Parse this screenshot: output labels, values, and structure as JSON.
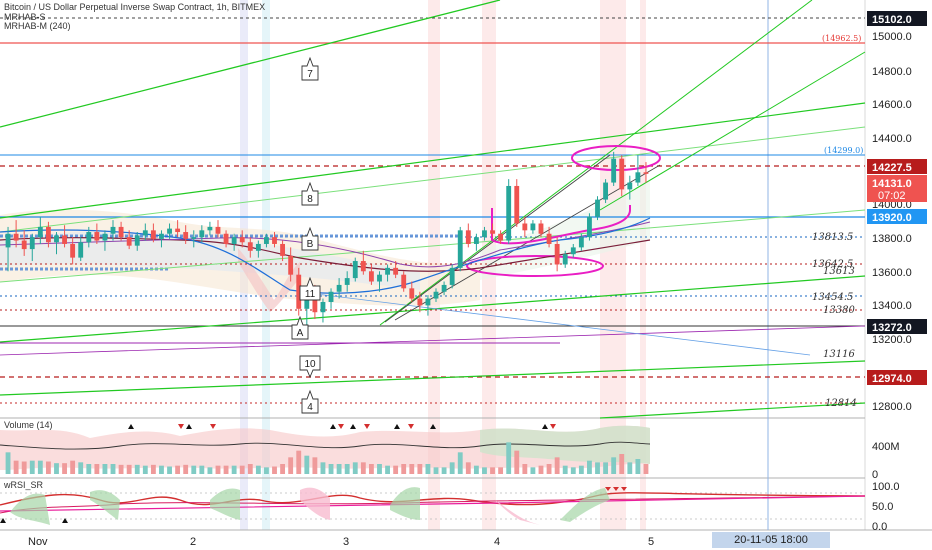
{
  "header": {
    "title": "Bitcoin / US Dollar Perpetual Inverse Swap Contract, 1h, BITMEX",
    "indicator_1": "MRHAB-S",
    "indicator_2": "MRHAB-M (240)"
  },
  "price_axis": {
    "ticks": [
      "15000.0",
      "14800.0",
      "14600.0",
      "14400.0",
      "14000.0",
      "13800.0",
      "13600.0",
      "13400.0",
      "13200.0",
      "12800.0"
    ],
    "tags": [
      {
        "label": "15102.0",
        "color": "#131722"
      },
      {
        "label": "14227.5",
        "color": "#b71c1c"
      },
      {
        "label": "14131.0",
        "color": "#ef5350"
      },
      {
        "label": "07:02",
        "color": "#ef5350"
      },
      {
        "label": "13920.0",
        "color": "#2196f3"
      },
      {
        "label": "13272.0",
        "color": "#131722"
      },
      {
        "label": "12974.0",
        "color": "#b71c1c"
      }
    ]
  },
  "annotations": {
    "level_14962": "(14962.5)",
    "level_14299": "(14299.0)",
    "level_13813": "13813.5",
    "level_13642": "13642.5",
    "level_13613": "13613",
    "level_13454": "13454.5",
    "level_13380": "13380",
    "level_13116": "13116",
    "level_12814": "12814"
  },
  "bubbles": [
    "7",
    "8",
    "B",
    "11",
    "A",
    "10",
    "4"
  ],
  "volume_pane": {
    "label": "Volume (14)",
    "ticks": [
      "400M",
      "0"
    ]
  },
  "rsi_pane": {
    "label": "wRSI_SR",
    "ticks": [
      "100.0",
      "50.0",
      "0.0"
    ]
  },
  "time_axis": {
    "labels": [
      "Nov",
      "2",
      "3",
      "4",
      "5"
    ],
    "cursor_label": "20-11-05   18:00"
  },
  "chart_data": {
    "type": "candlestick",
    "symbol": "Bitcoin / US Dollar Perpetual Inverse Swap Contract",
    "interval": "1h",
    "exchange": "BITMEX",
    "ylim": [
      12700,
      15150
    ],
    "last_price": 14131.0,
    "candles": [
      [
        13700,
        13820,
        13560,
        13780
      ],
      [
        13780,
        13860,
        13700,
        13740
      ],
      [
        13740,
        13800,
        13650,
        13690
      ],
      [
        13690,
        13780,
        13620,
        13760
      ],
      [
        13760,
        13880,
        13720,
        13820
      ],
      [
        13820,
        13850,
        13700,
        13730
      ],
      [
        13730,
        13790,
        13660,
        13770
      ],
      [
        13770,
        13830,
        13700,
        13720
      ],
      [
        13720,
        13760,
        13600,
        13640
      ],
      [
        13640,
        13760,
        13620,
        13730
      ],
      [
        13730,
        13820,
        13700,
        13790
      ],
      [
        13790,
        13840,
        13720,
        13740
      ],
      [
        13740,
        13800,
        13680,
        13780
      ],
      [
        13780,
        13860,
        13740,
        13820
      ],
      [
        13820,
        13850,
        13740,
        13760
      ],
      [
        13760,
        13800,
        13690,
        13710
      ],
      [
        13710,
        13790,
        13680,
        13770
      ],
      [
        13770,
        13840,
        13740,
        13800
      ],
      [
        13800,
        13840,
        13730,
        13750
      ],
      [
        13750,
        13800,
        13700,
        13780
      ],
      [
        13780,
        13840,
        13750,
        13810
      ],
      [
        13810,
        13860,
        13760,
        13790
      ],
      [
        13790,
        13830,
        13720,
        13750
      ],
      [
        13750,
        13800,
        13700,
        13760
      ],
      [
        13760,
        13830,
        13730,
        13800
      ],
      [
        13800,
        13850,
        13770,
        13820
      ],
      [
        13820,
        13860,
        13760,
        13780
      ],
      [
        13780,
        13800,
        13700,
        13720
      ],
      [
        13720,
        13780,
        13680,
        13760
      ],
      [
        13760,
        13800,
        13700,
        13730
      ],
      [
        13730,
        13760,
        13640,
        13680
      ],
      [
        13680,
        13740,
        13640,
        13720
      ],
      [
        13720,
        13780,
        13700,
        13760
      ],
      [
        13760,
        13790,
        13700,
        13720
      ],
      [
        13720,
        13740,
        13620,
        13650
      ],
      [
        13650,
        13700,
        13500,
        13540
      ],
      [
        13540,
        13580,
        13300,
        13340
      ],
      [
        13340,
        13460,
        13240,
        13420
      ],
      [
        13420,
        13480,
        13280,
        13320
      ],
      [
        13320,
        13400,
        13260,
        13380
      ],
      [
        13380,
        13460,
        13340,
        13440
      ],
      [
        13440,
        13520,
        13400,
        13480
      ],
      [
        13480,
        13560,
        13440,
        13520
      ],
      [
        13520,
        13640,
        13500,
        13620
      ],
      [
        13620,
        13680,
        13540,
        13560
      ],
      [
        13560,
        13600,
        13480,
        13500
      ],
      [
        13500,
        13560,
        13440,
        13540
      ],
      [
        13540,
        13600,
        13500,
        13580
      ],
      [
        13580,
        13620,
        13520,
        13540
      ],
      [
        13540,
        13560,
        13440,
        13460
      ],
      [
        13460,
        13500,
        13380,
        13400
      ],
      [
        13400,
        13440,
        13320,
        13360
      ],
      [
        13360,
        13420,
        13300,
        13400
      ],
      [
        13400,
        13460,
        13380,
        13440
      ],
      [
        13440,
        13500,
        13420,
        13480
      ],
      [
        13480,
        13600,
        13460,
        13580
      ],
      [
        13580,
        13820,
        13560,
        13800
      ],
      [
        13800,
        13840,
        13700,
        13720
      ],
      [
        13720,
        13780,
        13680,
        13760
      ],
      [
        13760,
        13820,
        13740,
        13800
      ],
      [
        13800,
        13840,
        13760,
        13780
      ],
      [
        13780,
        13800,
        13720,
        13740
      ],
      [
        13740,
        14100,
        13720,
        14060
      ],
      [
        14060,
        14100,
        13820,
        13840
      ],
      [
        13840,
        13880,
        13760,
        13800
      ],
      [
        13800,
        13860,
        13780,
        13840
      ],
      [
        13840,
        13860,
        13760,
        13780
      ],
      [
        13780,
        13820,
        13700,
        13720
      ],
      [
        13720,
        13760,
        13560,
        13600
      ],
      [
        13600,
        13680,
        13580,
        13660
      ],
      [
        13660,
        13720,
        13640,
        13700
      ],
      [
        13700,
        13780,
        13680,
        13760
      ],
      [
        13760,
        13900,
        13740,
        13880
      ],
      [
        13880,
        14000,
        13860,
        13980
      ],
      [
        13980,
        14100,
        13960,
        14080
      ],
      [
        14080,
        14260,
        14060,
        14220
      ],
      [
        14220,
        14240,
        14000,
        14040
      ],
      [
        14040,
        14120,
        13980,
        14080
      ],
      [
        14080,
        14240,
        14060,
        14140
      ],
      [
        14140,
        14200,
        14080,
        14131
      ]
    ]
  }
}
